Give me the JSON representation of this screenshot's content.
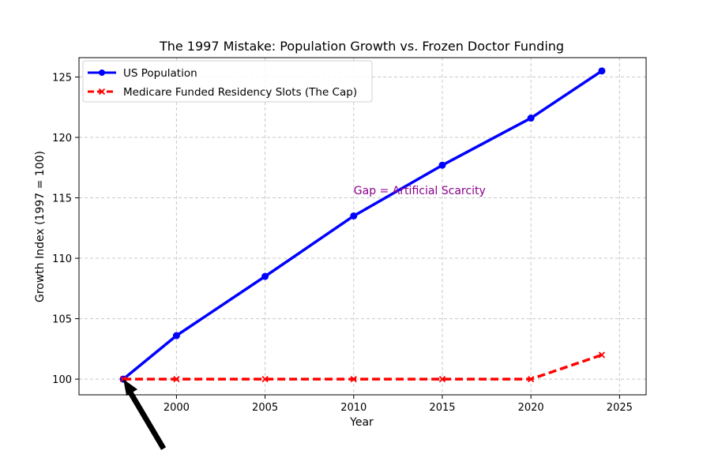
{
  "chart_data": {
    "type": "line",
    "title": "The 1997 Mistake: Population Growth vs. Frozen Doctor Funding",
    "xlabel": "Year",
    "ylabel": "Growth Index (1997 = 100)",
    "xlim": [
      1994.5,
      2026.5
    ],
    "ylim": [
      98.7,
      126.6
    ],
    "xticks": [
      2000,
      2005,
      2010,
      2015,
      2020,
      2025
    ],
    "yticks": [
      100,
      105,
      110,
      115,
      120,
      125
    ],
    "grid": true,
    "legend_position": "top-left",
    "series": [
      {
        "name": "US Population",
        "color": "#0000ff",
        "line_style": "solid",
        "marker": "circle",
        "x": [
          1997,
          2000,
          2005,
          2010,
          2015,
          2020,
          2024
        ],
        "y": [
          100,
          103.6,
          108.5,
          113.5,
          117.7,
          121.6,
          125.5
        ]
      },
      {
        "name": "Medicare Funded Residency Slots (The Cap)",
        "color": "#ff0000",
        "line_style": "dashed",
        "marker": "x",
        "x": [
          1997,
          2000,
          2005,
          2010,
          2015,
          2020,
          2024
        ],
        "y": [
          100,
          100,
          100,
          100,
          100,
          100,
          102
        ]
      }
    ],
    "annotations": [
      {
        "text": "Gap = Artificial Scarcity",
        "x": 2010,
        "y": 115.3,
        "color": "#8b008b"
      }
    ],
    "arrow": {
      "color": "#000000",
      "points_to_x": 1997,
      "points_to_y": 100
    }
  }
}
